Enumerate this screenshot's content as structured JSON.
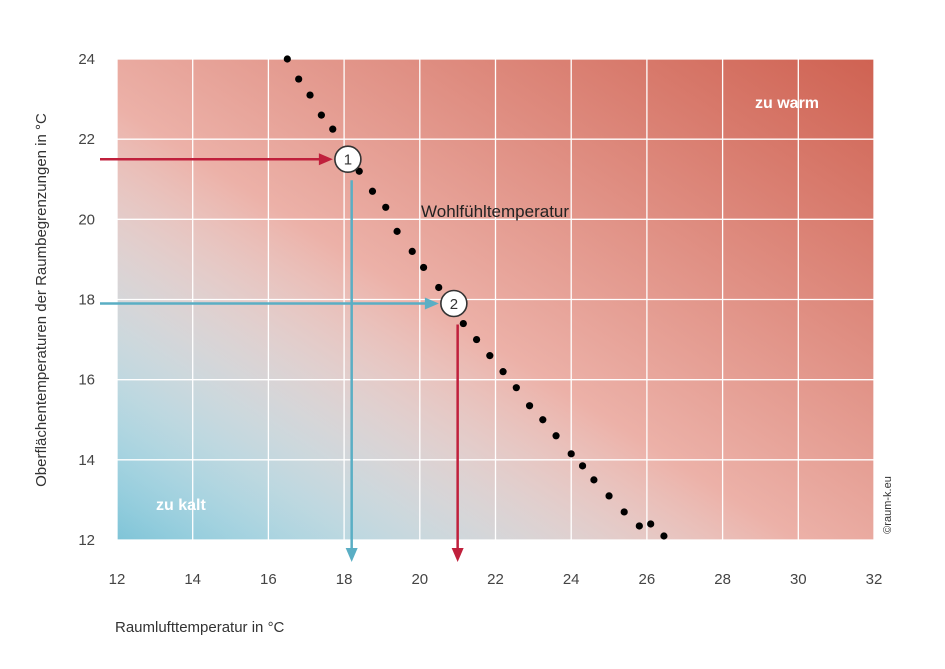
{
  "chart_data": {
    "type": "scatter",
    "xlabel": "Raumlufttemperatur in °C",
    "ylabel": "Oberflächentemperaturen der Raumbegrenzungen in °C",
    "xlim": [
      12,
      32
    ],
    "ylim": [
      12,
      24
    ],
    "x_ticks": [
      12,
      14,
      16,
      18,
      20,
      22,
      24,
      26,
      28,
      30,
      32
    ],
    "y_ticks": [
      12,
      14,
      16,
      18,
      20,
      22,
      24
    ],
    "grid": true,
    "series": [
      {
        "name": "Wohlfühltemperatur",
        "style": "dotted",
        "x": [
          16.5,
          16.8,
          17.1,
          17.4,
          17.7,
          18.05,
          18.4,
          18.75,
          19.1,
          19.4,
          19.8,
          20.1,
          20.5,
          20.75,
          21.15,
          21.5,
          21.85,
          22.2,
          22.55,
          22.9,
          23.25,
          23.6,
          24.0,
          24.3,
          24.6,
          25.0,
          25.4,
          25.8,
          26.1,
          26.45
        ],
        "y": [
          24.0,
          23.5,
          23.1,
          22.6,
          22.25,
          21.7,
          21.2,
          20.7,
          20.3,
          19.7,
          19.2,
          18.8,
          18.3,
          17.75,
          17.4,
          17.0,
          16.6,
          16.2,
          15.8,
          15.35,
          15.0,
          14.6,
          14.15,
          13.85,
          13.5,
          13.1,
          12.7,
          12.35,
          12.4,
          12.1
        ]
      }
    ],
    "regions": [
      {
        "label": "zu kalt",
        "color": "#8ecbdb"
      },
      {
        "label": "zu warm",
        "color": "#d06454"
      }
    ],
    "curve_label": "Wohlfühltemperatur",
    "markers": [
      {
        "label": "1",
        "x": 18.1,
        "y": 21.5,
        "arrow_in_color": "#c0203c",
        "arrow_out_color": "#5aaec4",
        "arrow_out_x": 18.2
      },
      {
        "label": "2",
        "x": 20.9,
        "y": 17.9,
        "arrow_in_color": "#5aaec4",
        "arrow_out_color": "#c0203c",
        "arrow_out_x": 21.0
      }
    ],
    "copyright": "©raum-k.eu"
  },
  "colors": {
    "grid": "#ffffff",
    "dots": "#000000",
    "red_arrow": "#c0203c",
    "blue_arrow": "#5aaec4"
  }
}
